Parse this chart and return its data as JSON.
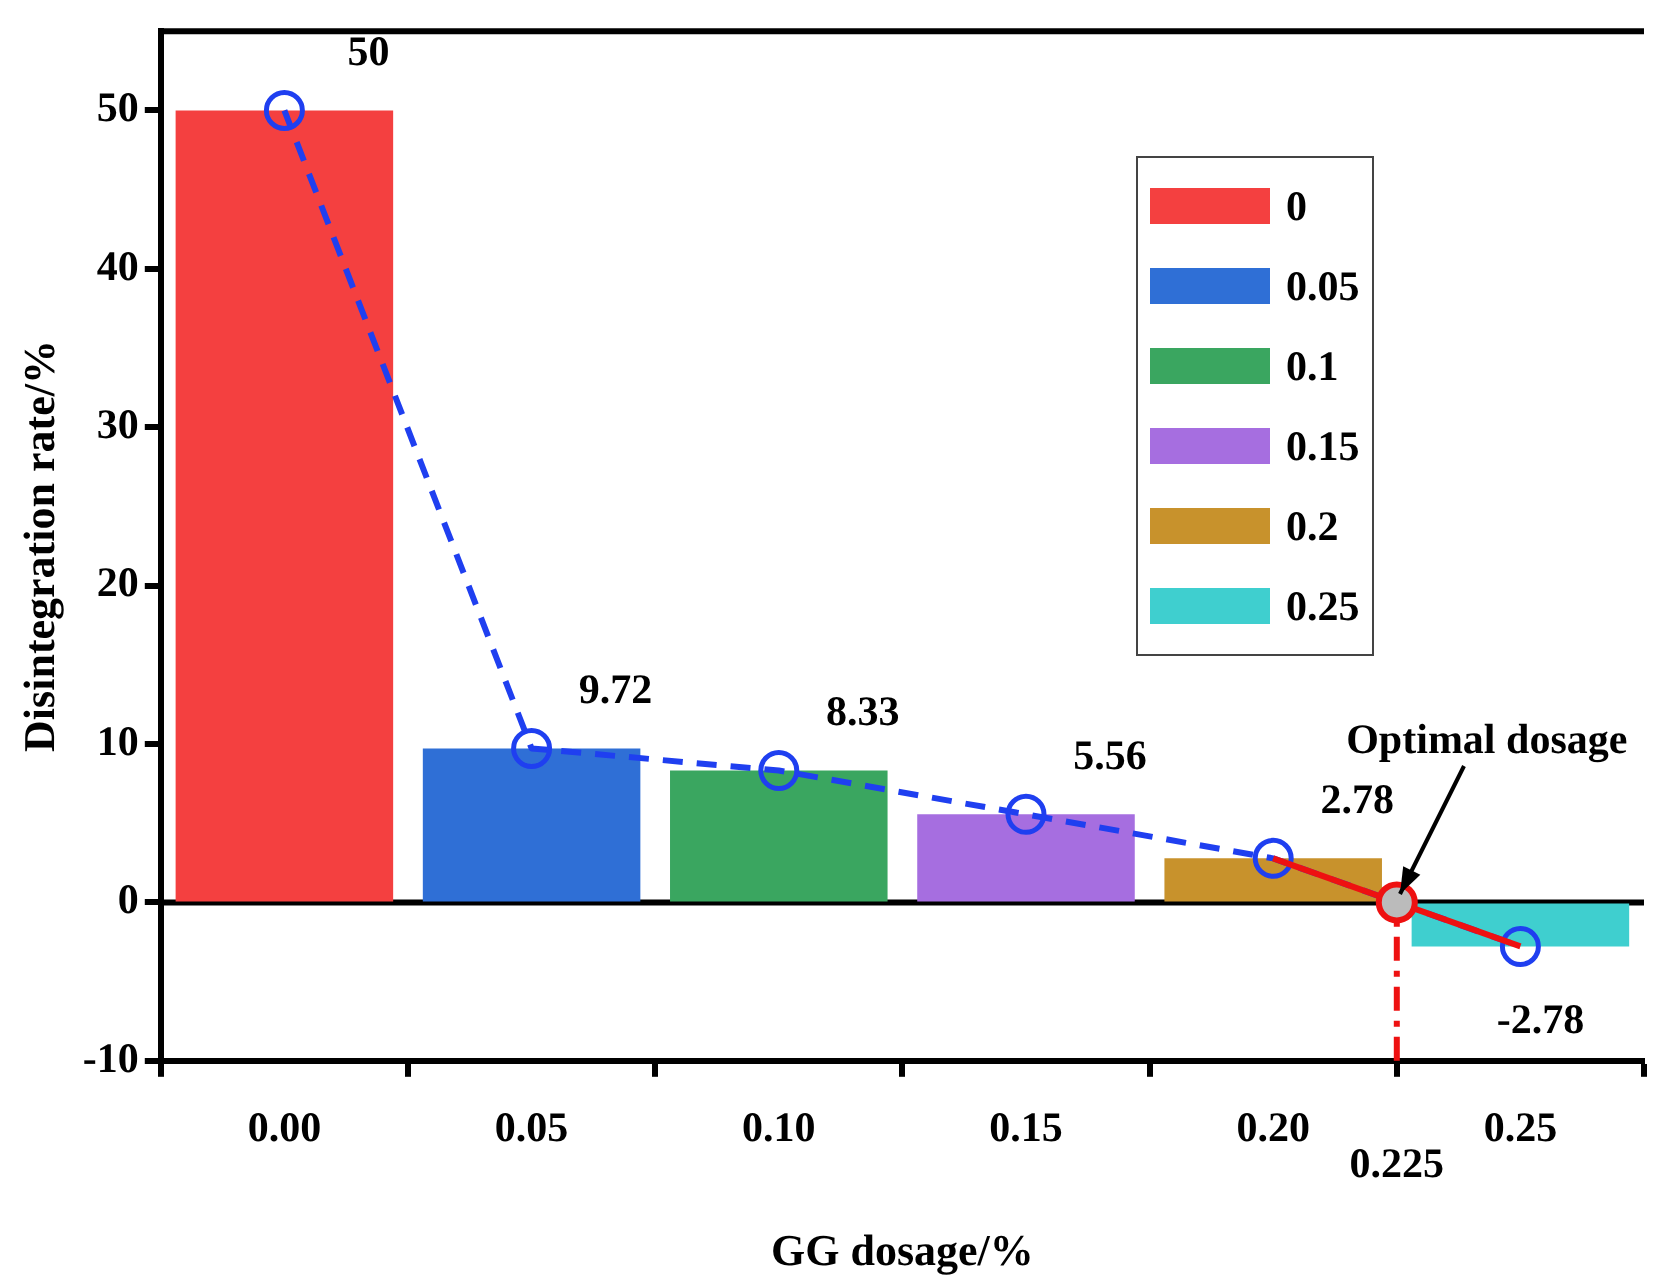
{
  "chart_data": {
    "type": "bar",
    "xlabel": "GG dosage/%",
    "ylabel": "Disintegration rate/%",
    "xlim": [
      -0.025,
      0.275
    ],
    "ylim": [
      -10,
      55
    ],
    "xticks": [
      {
        "value": 0,
        "label": "0.00"
      },
      {
        "value": 0.05,
        "label": "0.05"
      },
      {
        "value": 0.1,
        "label": "0.10"
      },
      {
        "value": 0.15,
        "label": "0.15"
      },
      {
        "value": 0.2,
        "label": "0.20"
      },
      {
        "value": 0.25,
        "label": "0.25"
      }
    ],
    "yticks": [
      -10,
      0,
      10,
      20,
      30,
      40,
      50
    ],
    "series": [
      {
        "name": "0",
        "color": "#f44040",
        "x": [
          0
        ],
        "values": [
          50
        ]
      },
      {
        "name": "0.05",
        "color": "#2f6fd6",
        "x": [
          0.05
        ],
        "values": [
          9.72
        ]
      },
      {
        "name": "0.1",
        "color": "#3aa660",
        "x": [
          0.1
        ],
        "values": [
          8.33
        ]
      },
      {
        "name": "0.15",
        "color": "#a66ee0",
        "x": [
          0.15
        ],
        "values": [
          5.56
        ]
      },
      {
        "name": "0.2",
        "color": "#c8922c",
        "x": [
          0.2
        ],
        "values": [
          2.78
        ]
      },
      {
        "name": "0.25",
        "color": "#3fcfcf",
        "x": [
          0.25
        ],
        "values": [
          -2.78
        ]
      },
      {
        "type": "line",
        "color": "#1f3ff0",
        "x": [
          0,
          0.05,
          0.1,
          0.15,
          0.2,
          0.25
        ],
        "values": [
          50,
          9.72,
          8.33,
          5.56,
          2.78,
          -2.78
        ],
        "marker": "circle",
        "line_style": "dashed",
        "value_labels": [
          "50",
          "9.72",
          "8.33",
          "5.56",
          "2.78",
          "-2.78"
        ]
      },
      {
        "type": "line",
        "color": "#ee1111",
        "x": [
          0.2,
          0.25
        ],
        "values": [
          2.78,
          -2.78
        ],
        "marker": "none",
        "line_style": "solid"
      },
      {
        "type": "scatter",
        "color": "#ee1111",
        "x": [
          0.225
        ],
        "values": [
          0
        ],
        "marker": "circle"
      }
    ],
    "ref_lines": [
      {
        "axis": "y",
        "value": 0,
        "color": "#000000",
        "line_style": "solid"
      },
      {
        "axis": "x",
        "value": 0.225,
        "label": "0.225",
        "color": "#ee1111",
        "line_style": "dashed"
      }
    ],
    "annotations": [
      {
        "text": "Optimal dosage",
        "x": 0.225,
        "y": 0
      }
    ],
    "legend": "top right",
    "grid": false
  }
}
